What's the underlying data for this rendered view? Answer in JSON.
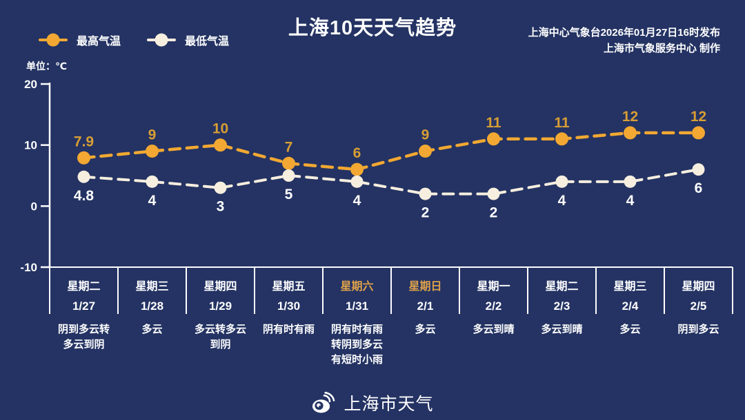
{
  "header": {
    "title": "上海10天天气趋势",
    "issued_line1": "上海中心气象台2026年01月27日16时发布",
    "issued_line2": "上海市气象服务中心 制作",
    "unit_label": "单位：℃"
  },
  "chart_data": {
    "type": "line",
    "title": "上海10天天气趋势",
    "unit": "℃",
    "ylim": [
      -10,
      20
    ],
    "yticks": [
      20,
      10,
      0,
      -10
    ],
    "grid": false,
    "legend_position": "top-left",
    "line_style": "dashed",
    "days": [
      {
        "weekday": "星期二",
        "date": "1/27",
        "weekend": false,
        "weather": "阴到多云转多云到阴",
        "weather_lines": [
          "阴到多云转",
          "多云到阴"
        ]
      },
      {
        "weekday": "星期三",
        "date": "1/28",
        "weekend": false,
        "weather": "多云",
        "weather_lines": [
          "多云"
        ]
      },
      {
        "weekday": "星期四",
        "date": "1/29",
        "weekend": false,
        "weather": "多云转多云到阴",
        "weather_lines": [
          "多云转多云",
          "到阴"
        ]
      },
      {
        "weekday": "星期五",
        "date": "1/30",
        "weekend": false,
        "weather": "阴有时有雨",
        "weather_lines": [
          "阴有时有雨"
        ]
      },
      {
        "weekday": "星期六",
        "date": "1/31",
        "weekend": true,
        "weather": "阴有时有雨转阴到多云有短时小雨",
        "weather_lines": [
          "阴有时有雨",
          "转阴到多云",
          "有短时小雨"
        ]
      },
      {
        "weekday": "星期日",
        "date": "2/1",
        "weekend": true,
        "weather": "多云",
        "weather_lines": [
          "多云"
        ]
      },
      {
        "weekday": "星期一",
        "date": "2/2",
        "weekend": false,
        "weather": "多云到晴",
        "weather_lines": [
          "多云到晴"
        ]
      },
      {
        "weekday": "星期二",
        "date": "2/3",
        "weekend": false,
        "weather": "多云到晴",
        "weather_lines": [
          "多云到晴"
        ]
      },
      {
        "weekday": "星期三",
        "date": "2/4",
        "weekend": false,
        "weather": "多云",
        "weather_lines": [
          "多云"
        ]
      },
      {
        "weekday": "星期四",
        "date": "2/5",
        "weekend": false,
        "weather": "阴到多云",
        "weather_lines": [
          "阴到多云"
        ]
      }
    ],
    "series": [
      {
        "name": "最高气温",
        "values": [
          7.9,
          9,
          10,
          7,
          6,
          9,
          11,
          11,
          12,
          12
        ],
        "color": "#F2A832",
        "label_color": "#D89E35"
      },
      {
        "name": "最低气温",
        "values": [
          4.8,
          4,
          3,
          5,
          4,
          2,
          2,
          4,
          4,
          6
        ],
        "color": "#F6EEDF",
        "label_color": "#FFFFFF"
      }
    ]
  },
  "colors": {
    "background": "#243363",
    "axis": "#FFFFFF",
    "text": "#FFFFFF",
    "weekend_label": "#DFA24A"
  },
  "footer": {
    "brand": "上海市天气"
  }
}
